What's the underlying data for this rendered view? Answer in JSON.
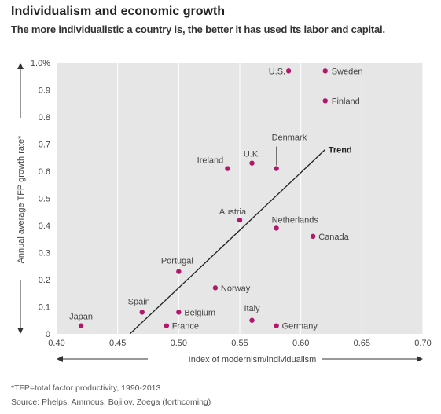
{
  "title": "Individualism and economic growth",
  "subtitle": "The more individualistic a country is, the better it has used its labor and capital.",
  "footnote": "*TFP=total factor productivity, 1990-2013",
  "source": "Source: Phelps, Ammous, Bojilov, Zoega (forthcoming)",
  "colors": {
    "plot_background": "#e6e6e6",
    "point": "#b0186b",
    "trend": "#222222",
    "grid": "#ffffff",
    "text": "#444444"
  },
  "chart_data": {
    "type": "scatter",
    "title": "Individualism and economic growth",
    "subtitle": "The more individualistic a country is, the better it has used its labor and capital.",
    "xlabel": "Index of modernism/individualism",
    "ylabel": "Annual average TFP growth rate*",
    "xlim": [
      0.4,
      0.7
    ],
    "ylim": [
      0,
      1.0
    ],
    "x_ticks": [
      0.4,
      0.45,
      0.5,
      0.55,
      0.6,
      0.65,
      0.7
    ],
    "x_tick_labels": [
      "0.40",
      "0.45",
      "0.50",
      "0.55",
      "0.60",
      "0.65",
      "0.70"
    ],
    "y_ticks": [
      0,
      0.1,
      0.2,
      0.3,
      0.4,
      0.5,
      0.6,
      0.7,
      0.8,
      0.9,
      1.0
    ],
    "y_tick_labels": [
      "0",
      "0.1",
      "0.2",
      "0.3",
      "0.4",
      "0.5",
      "0.6",
      "0.7",
      "0.8",
      "0.9",
      "1.0%"
    ],
    "grid": true,
    "points": [
      {
        "label": "U.S.",
        "x": 0.59,
        "y": 0.97
      },
      {
        "label": "Sweden",
        "x": 0.62,
        "y": 0.97
      },
      {
        "label": "Finland",
        "x": 0.62,
        "y": 0.86
      },
      {
        "label": "Denmark",
        "x": 0.58,
        "y": 0.61
      },
      {
        "label": "U.K.",
        "x": 0.56,
        "y": 0.63
      },
      {
        "label": "Ireland",
        "x": 0.54,
        "y": 0.61
      },
      {
        "label": "Austria",
        "x": 0.55,
        "y": 0.42
      },
      {
        "label": "Netherlands",
        "x": 0.58,
        "y": 0.39
      },
      {
        "label": "Canada",
        "x": 0.61,
        "y": 0.36
      },
      {
        "label": "Portugal",
        "x": 0.5,
        "y": 0.23
      },
      {
        "label": "Norway",
        "x": 0.53,
        "y": 0.17
      },
      {
        "label": "Spain",
        "x": 0.47,
        "y": 0.08
      },
      {
        "label": "Belgium",
        "x": 0.5,
        "y": 0.08
      },
      {
        "label": "France",
        "x": 0.49,
        "y": 0.03
      },
      {
        "label": "Italy",
        "x": 0.56,
        "y": 0.05
      },
      {
        "label": "Germany",
        "x": 0.58,
        "y": 0.03
      },
      {
        "label": "Japan",
        "x": 0.42,
        "y": 0.03
      }
    ],
    "trend": {
      "label": "Trend",
      "start": {
        "x": 0.46,
        "y": 0
      },
      "end": {
        "x": 0.62,
        "y": 0.68
      }
    }
  }
}
